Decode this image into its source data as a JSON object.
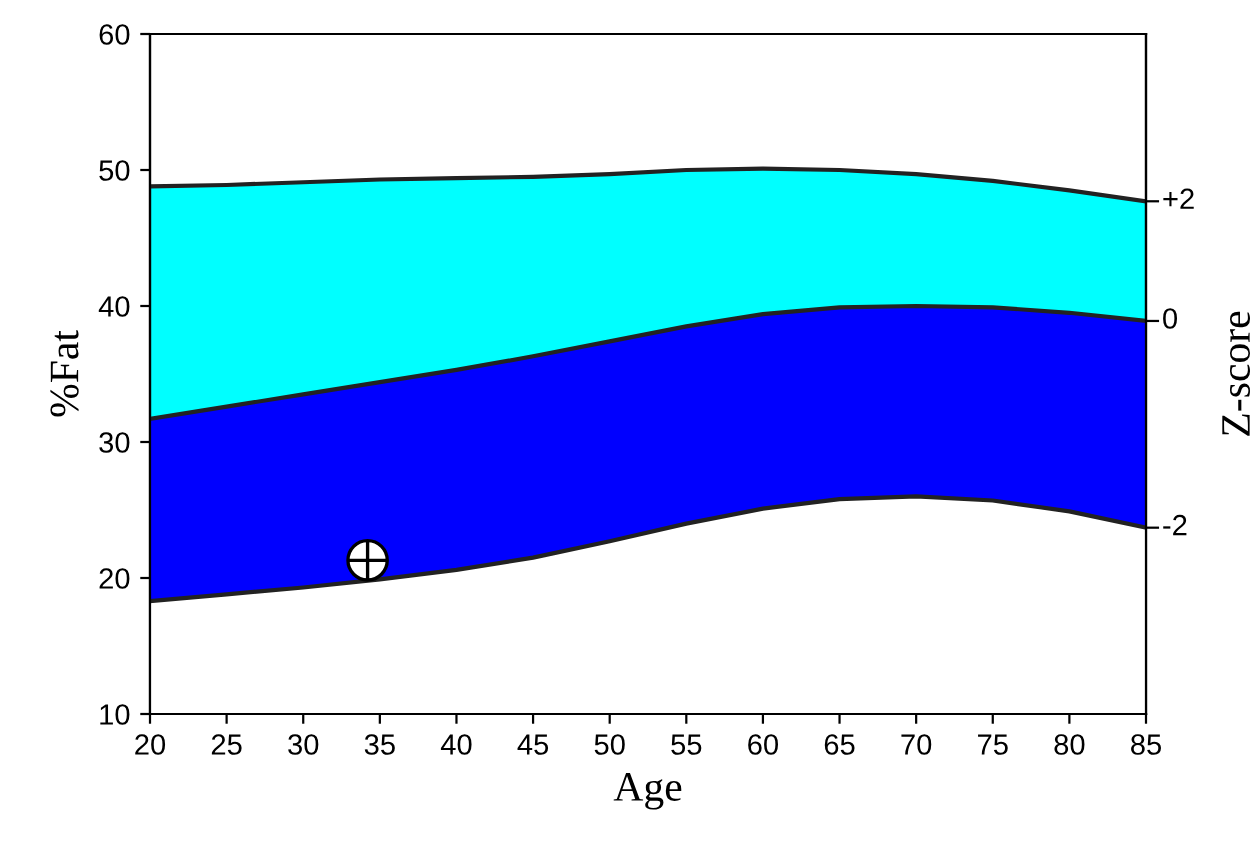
{
  "chart_data": {
    "type": "area",
    "xlabel": "Age",
    "ylabel": "%Fat",
    "y2label": "Z-score",
    "x": [
      20,
      25,
      30,
      35,
      40,
      45,
      50,
      55,
      60,
      65,
      70,
      75,
      80,
      85
    ],
    "series": [
      {
        "color": "#00ffff",
        "values": [
          48.8,
          48.9,
          49.1,
          49.3,
          49.4,
          49.5,
          49.7,
          50.0,
          50.1,
          50.0,
          49.7,
          49.2,
          48.5,
          47.7
        ]
      },
      {
        "color": "#0000ff",
        "values": [
          31.7,
          32.6,
          33.5,
          34.4,
          35.3,
          36.3,
          37.4,
          38.5,
          39.4,
          39.9,
          40.0,
          39.9,
          39.5,
          38.9
        ]
      },
      {
        "color": "#ffffff",
        "values": [
          18.3,
          18.8,
          19.3,
          19.9,
          20.6,
          21.5,
          22.7,
          24.0,
          25.1,
          25.8,
          26.0,
          25.7,
          24.9,
          23.7
        ]
      },
      {
        "type": "scatter",
        "color": "#ffffff",
        "marker": "circle",
        "x": [
          34.2
        ],
        "values": [
          21.3
        ]
      }
    ],
    "xlim": [
      20,
      85
    ],
    "xticks": [
      20,
      25,
      30,
      35,
      40,
      45,
      50,
      55,
      60,
      65,
      70,
      75,
      80,
      85
    ],
    "ylim": [
      10,
      60
    ],
    "yticks": [
      10,
      20,
      30,
      40,
      50,
      60
    ],
    "annotations": [
      "+2",
      "0",
      "-2"
    ],
    "grid": false,
    "legend": false
  }
}
